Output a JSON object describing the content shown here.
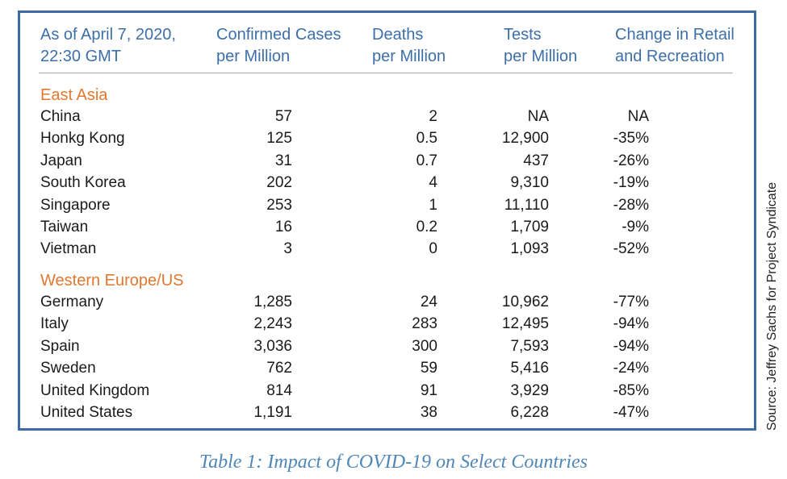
{
  "headers": {
    "asof": "As of April 7, 2020,\n22:30 GMT",
    "cases": "Confirmed Cases\nper Million",
    "deaths": "Deaths\nper Million",
    "tests": "Tests\nper Million",
    "retail": "Change in Retail\nand Recreation"
  },
  "sections": [
    {
      "title": "East Asia",
      "rows": [
        {
          "country": "China",
          "cases": "57",
          "deaths": "2",
          "tests": "NA",
          "retail": "NA"
        },
        {
          "country": "Honkg Kong",
          "cases": "125",
          "deaths": "0.5",
          "tests": "12,900",
          "retail": "-35%"
        },
        {
          "country": "Japan",
          "cases": "31",
          "deaths": "0.7",
          "tests": "437",
          "retail": "-26%"
        },
        {
          "country": "South Korea",
          "cases": "202",
          "deaths": "4",
          "tests": "9,310",
          "retail": "-19%"
        },
        {
          "country": "Singapore",
          "cases": "253",
          "deaths": "1",
          "tests": "11,110",
          "retail": "-28%"
        },
        {
          "country": "Taiwan",
          "cases": "16",
          "deaths": "0.2",
          "tests": "1,709",
          "retail": "-9%"
        },
        {
          "country": "Vietman",
          "cases": "3",
          "deaths": "0",
          "tests": "1,093",
          "retail": "-52%"
        }
      ]
    },
    {
      "title": "Western Europe/US",
      "rows": [
        {
          "country": "Germany",
          "cases": "1,285",
          "deaths": "24",
          "tests": "10,962",
          "retail": "-77%"
        },
        {
          "country": "Italy",
          "cases": "2,243",
          "deaths": "283",
          "tests": "12,495",
          "retail": "-94%"
        },
        {
          "country": "Spain",
          "cases": "3,036",
          "deaths": "300",
          "tests": "7,593",
          "retail": "-94%"
        },
        {
          "country": "Sweden",
          "cases": "762",
          "deaths": "59",
          "tests": "5,416",
          "retail": "-24%"
        },
        {
          "country": "United Kingdom",
          "cases": "814",
          "deaths": "91",
          "tests": "3,929",
          "retail": "-85%"
        },
        {
          "country": "United States",
          "cases": "1,191",
          "deaths": "38",
          "tests": "6,228",
          "retail": "-47%"
        }
      ]
    }
  ],
  "caption": "Table 1: Impact of COVID-19 on Select Countries",
  "source": "Source: Jeffrey Sachs for Project Syndicate",
  "colors": {
    "border": "#3e6aa8",
    "header": "#3c6fa8",
    "section": "#e2772f",
    "caption": "#4f86b8"
  }
}
